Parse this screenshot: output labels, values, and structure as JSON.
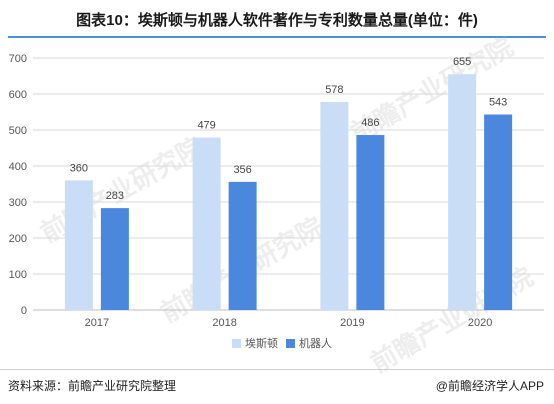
{
  "title": "图表10：埃斯顿与机器人软件著作与专利数量总量(单位：件)",
  "watermark": "前瞻产业研究院",
  "footer": {
    "source": "资料来源：前瞻产业研究院整理",
    "brand": "@前瞻经济学人APP"
  },
  "colors": {
    "series_1": "#c9ddf7",
    "series_2": "#4a87dd",
    "grid": "#d9d9d9",
    "axis": "#bfbfbf"
  },
  "chart_data": {
    "type": "bar",
    "title": "图表10：埃斯顿与机器人软件著作与专利数量总量(单位：件)",
    "categories": [
      "2017",
      "2018",
      "2019",
      "2020"
    ],
    "series": [
      {
        "name": "埃斯顿",
        "values": [
          360,
          479,
          578,
          655
        ]
      },
      {
        "name": "机器人",
        "values": [
          283,
          356,
          486,
          543
        ]
      }
    ],
    "ylim": [
      0,
      700
    ],
    "yticks": [
      0,
      100,
      200,
      300,
      400,
      500,
      600,
      700
    ],
    "grid": true,
    "legend": "bottom"
  }
}
